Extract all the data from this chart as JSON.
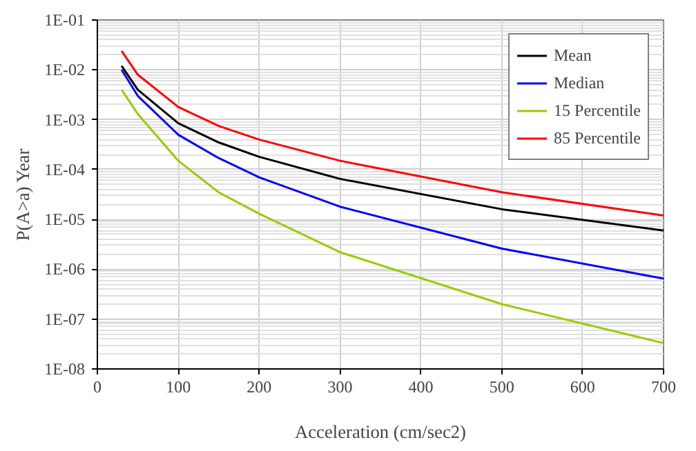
{
  "chart_data": {
    "type": "line",
    "xlabel": "Acceleration (cm/sec2)",
    "ylabel": "P(A>a) Year",
    "x": [
      30,
      50,
      100,
      150,
      200,
      300,
      500,
      700
    ],
    "series": [
      {
        "name": "Mean",
        "color": "#000000",
        "values": [
          0.012,
          0.004,
          0.00085,
          0.00035,
          0.00018,
          6.5e-05,
          1.6e-05,
          6e-06
        ]
      },
      {
        "name": "Median",
        "color": "#0000ff",
        "values": [
          0.01,
          0.003,
          0.0005,
          0.00017,
          7e-05,
          1.8e-05,
          2.6e-06,
          6.5e-07
        ]
      },
      {
        "name": "15 Percentile",
        "color": "#99cc00",
        "values": [
          0.004,
          0.0013,
          0.00015,
          3.5e-05,
          1.3e-05,
          2.2e-06,
          2e-07,
          3.3e-08
        ]
      },
      {
        "name": "85 Percentile",
        "color": "#ff0000",
        "values": [
          0.024,
          0.008,
          0.0018,
          0.00075,
          0.0004,
          0.00015,
          3.5e-05,
          1.2e-05
        ]
      }
    ],
    "log": "y",
    "xlim": [
      0,
      700
    ],
    "xticks": [
      0,
      100,
      200,
      300,
      400,
      500,
      600,
      700
    ],
    "ylim": [
      1e-08,
      0.1
    ],
    "yticks": [
      {
        "value": 1e-08,
        "label": "1E-08"
      },
      {
        "value": 1e-07,
        "label": "1E-07"
      },
      {
        "value": 1e-06,
        "label": "1E-06"
      },
      {
        "value": 1e-05,
        "label": "1E-05"
      },
      {
        "value": 0.0001,
        "label": "1E-04"
      },
      {
        "value": 0.001,
        "label": "1E-03"
      },
      {
        "value": 0.01,
        "label": "1E-02"
      },
      {
        "value": 0.1,
        "label": "1E-01"
      }
    ],
    "grid": true,
    "legend": "top right",
    "marker": "none",
    "line_style": "solid"
  }
}
